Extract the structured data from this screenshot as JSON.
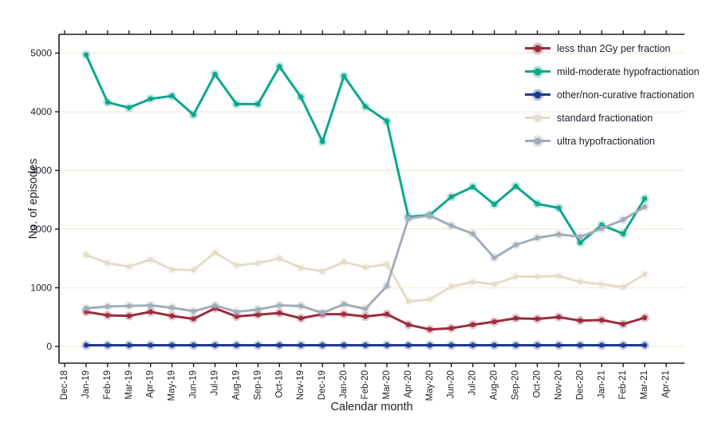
{
  "chart_data": {
    "type": "line",
    "title": "",
    "xlabel": "Calendar month",
    "ylabel": "No. of episodes",
    "ylim": [
      0,
      5000
    ],
    "yticks": [
      0,
      1000,
      2000,
      3000,
      4000,
      5000
    ],
    "grid": true,
    "legend_position": "top-right",
    "categories": [
      "Dec-18",
      "Jan-19",
      "Feb-19",
      "Mar-19",
      "Apr-19",
      "May-19",
      "Jun-19",
      "Jul-19",
      "Aug-19",
      "Sep-19",
      "Oct-19",
      "Nov-19",
      "Dec-19",
      "Jan-20",
      "Feb-20",
      "Mar-20",
      "Apr-20",
      "May-20",
      "Jun-20",
      "Jul-20",
      "Aug-20",
      "Sep-20",
      "Oct-20",
      "Nov-20",
      "Dec-20",
      "Jan-21",
      "Feb-21",
      "Mar-21",
      "Apr-21"
    ],
    "series_start_index": 1,
    "series": [
      {
        "name": "less than 2Gy per fraction",
        "color": "#9b2c3e",
        "values": [
          590,
          530,
          520,
          590,
          520,
          470,
          650,
          510,
          540,
          570,
          480,
          550,
          550,
          510,
          550,
          370,
          290,
          310,
          370,
          420,
          480,
          470,
          500,
          440,
          450,
          380,
          490
        ]
      },
      {
        "name": "mild-moderate hypofractionation",
        "color": "#0ca78e",
        "values": [
          4970,
          4160,
          4070,
          4220,
          4270,
          3950,
          4640,
          4130,
          4130,
          4770,
          4250,
          3490,
          4610,
          4090,
          3840,
          2210,
          2240,
          2550,
          2720,
          2420,
          2730,
          2430,
          2360,
          1770,
          2070,
          1920,
          2520
        ]
      },
      {
        "name": "other/non-curative fractionation",
        "color": "#1e3a8f",
        "values": [
          20,
          20,
          20,
          20,
          20,
          20,
          20,
          20,
          20,
          20,
          20,
          20,
          20,
          20,
          20,
          20,
          20,
          20,
          20,
          20,
          20,
          20,
          20,
          20,
          20,
          20,
          20
        ]
      },
      {
        "name": "standard fractionation",
        "color": "#e3ddc9",
        "values": [
          1560,
          1420,
          1360,
          1480,
          1310,
          1300,
          1600,
          1380,
          1420,
          1500,
          1340,
          1280,
          1440,
          1350,
          1400,
          770,
          800,
          1020,
          1100,
          1060,
          1190,
          1190,
          1200,
          1100,
          1060,
          1010,
          1230
        ]
      },
      {
        "name": "ultra hypofractionation",
        "color": "#a3adba",
        "values": [
          650,
          680,
          690,
          700,
          660,
          600,
          700,
          590,
          630,
          700,
          690,
          570,
          720,
          640,
          1030,
          2180,
          2230,
          2060,
          1920,
          1510,
          1730,
          1850,
          1910,
          1870,
          2010,
          2160,
          2380
        ]
      }
    ],
    "style": {
      "gridline_color": "#f4efdd",
      "frame_color": "#1a1d21",
      "text_color": "#20222a",
      "background": "#ffffff"
    }
  }
}
